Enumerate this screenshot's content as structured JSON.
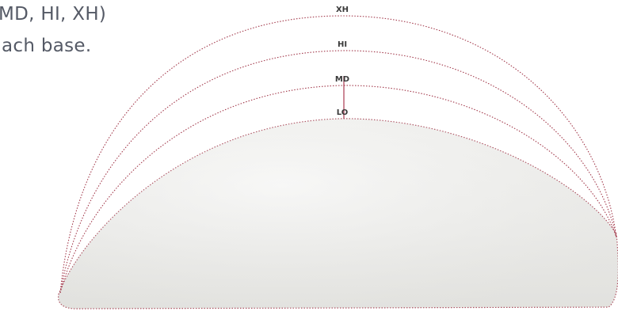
{
  "caption": {
    "line1": "MD, HI, XH)",
    "line2": "ach base."
  },
  "profiles": [
    {
      "label": "XH"
    },
    {
      "label": "HI"
    },
    {
      "label": "MD"
    },
    {
      "label": "LO"
    }
  ],
  "colors": {
    "accent": "#b0485e",
    "dotted": "#a33a4c",
    "implant_fill": "#eeeeec",
    "caption_text": "#555a66"
  }
}
